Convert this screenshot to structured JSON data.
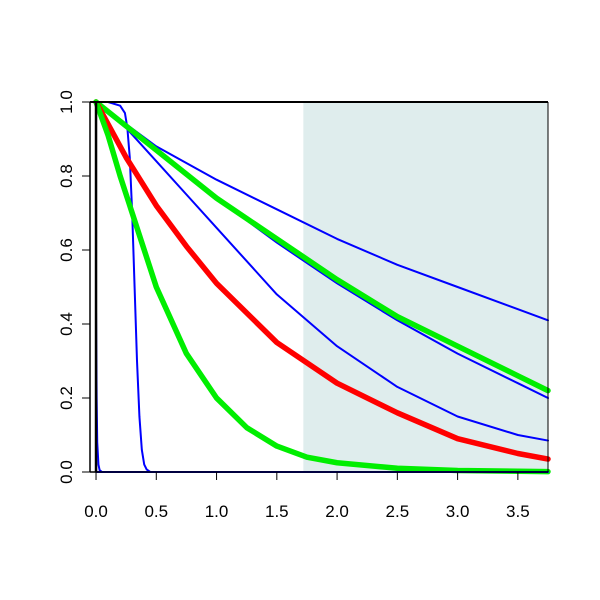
{
  "chart_data": {
    "type": "line",
    "title": "",
    "xlabel": "",
    "ylabel": "",
    "xlim": [
      -0.05,
      3.75
    ],
    "ylim": [
      0.0,
      1.0
    ],
    "x_ticks": [
      0.0,
      0.5,
      1.0,
      1.5,
      2.0,
      2.5,
      3.0,
      3.5
    ],
    "x_tick_labels": [
      "0.0",
      "0.5",
      "1.0",
      "1.5",
      "2.0",
      "2.5",
      "3.0",
      "3.5"
    ],
    "y_ticks": [
      0.0,
      0.2,
      0.4,
      0.6,
      0.8,
      1.0
    ],
    "y_tick_labels": [
      "0.0",
      "0.2",
      "0.4",
      "0.6",
      "0.8",
      "1.0"
    ],
    "grid": false,
    "shaded_region": {
      "x_from": 1.72,
      "x_to": 3.75,
      "color": "#dfeded"
    },
    "series": [
      {
        "color": "#0000ff",
        "width": "thin",
        "x": [
          0.0,
          0.005,
          0.01,
          0.02,
          0.03,
          0.05,
          0.08
        ],
        "y": [
          0.43,
          0.2,
          0.08,
          0.02,
          0.005,
          0.0,
          0.0
        ]
      },
      {
        "color": "#0000ff",
        "width": "thin",
        "x": [
          0.0,
          0.1,
          0.2,
          0.24,
          0.26,
          0.28,
          0.3,
          0.32,
          0.34,
          0.36,
          0.38,
          0.4,
          0.42,
          0.45,
          0.5
        ],
        "y": [
          1.0,
          1.0,
          0.99,
          0.97,
          0.93,
          0.85,
          0.7,
          0.5,
          0.3,
          0.15,
          0.06,
          0.02,
          0.007,
          0.0,
          0.0
        ]
      },
      {
        "color": "#0000ff",
        "width": "thin",
        "x": [
          0.0,
          0.5,
          1.0,
          1.5,
          2.0,
          2.5,
          3.0,
          3.5,
          3.75
        ],
        "y": [
          1.0,
          0.88,
          0.79,
          0.71,
          0.63,
          0.56,
          0.5,
          0.44,
          0.41
        ]
      },
      {
        "color": "#0000ff",
        "width": "thin",
        "x": [
          0.0,
          0.5,
          1.0,
          1.5,
          2.0,
          2.5,
          3.0,
          3.5,
          3.75
        ],
        "y": [
          1.0,
          0.87,
          0.74,
          0.62,
          0.51,
          0.41,
          0.32,
          0.24,
          0.2
        ]
      },
      {
        "color": "#0000ff",
        "width": "thin",
        "x": [
          0.0,
          0.25,
          0.5,
          0.75,
          1.0,
          1.5,
          2.0,
          2.5,
          3.0,
          3.5,
          3.75
        ],
        "y": [
          1.0,
          0.93,
          0.84,
          0.75,
          0.66,
          0.48,
          0.34,
          0.23,
          0.15,
          0.1,
          0.085
        ]
      },
      {
        "color": "#00ee00",
        "width": "thick",
        "x": [
          0.0,
          0.5,
          1.0,
          1.5,
          2.0,
          2.5,
          3.0,
          3.5,
          3.75
        ],
        "y": [
          1.0,
          0.87,
          0.74,
          0.63,
          0.52,
          0.42,
          0.34,
          0.26,
          0.22
        ]
      },
      {
        "color": "#ff0000",
        "width": "thick",
        "x": [
          0.0,
          0.25,
          0.5,
          0.75,
          1.0,
          1.5,
          2.0,
          2.5,
          3.0,
          3.5,
          3.75
        ],
        "y": [
          1.0,
          0.85,
          0.72,
          0.61,
          0.51,
          0.35,
          0.24,
          0.16,
          0.09,
          0.05,
          0.035
        ]
      },
      {
        "color": "#00ee00",
        "width": "thick",
        "x": [
          0.0,
          0.1,
          0.2,
          0.3,
          0.4,
          0.5,
          0.75,
          1.0,
          1.25,
          1.5,
          1.75,
          2.0,
          2.5,
          3.0,
          3.75
        ],
        "y": [
          1.0,
          0.91,
          0.8,
          0.7,
          0.6,
          0.5,
          0.32,
          0.2,
          0.12,
          0.07,
          0.04,
          0.025,
          0.01,
          0.004,
          0.001
        ]
      },
      {
        "color": "#0000ff",
        "width": "thin",
        "x": [
          0.0,
          3.75
        ],
        "y": [
          0.0,
          0.0
        ]
      }
    ]
  }
}
